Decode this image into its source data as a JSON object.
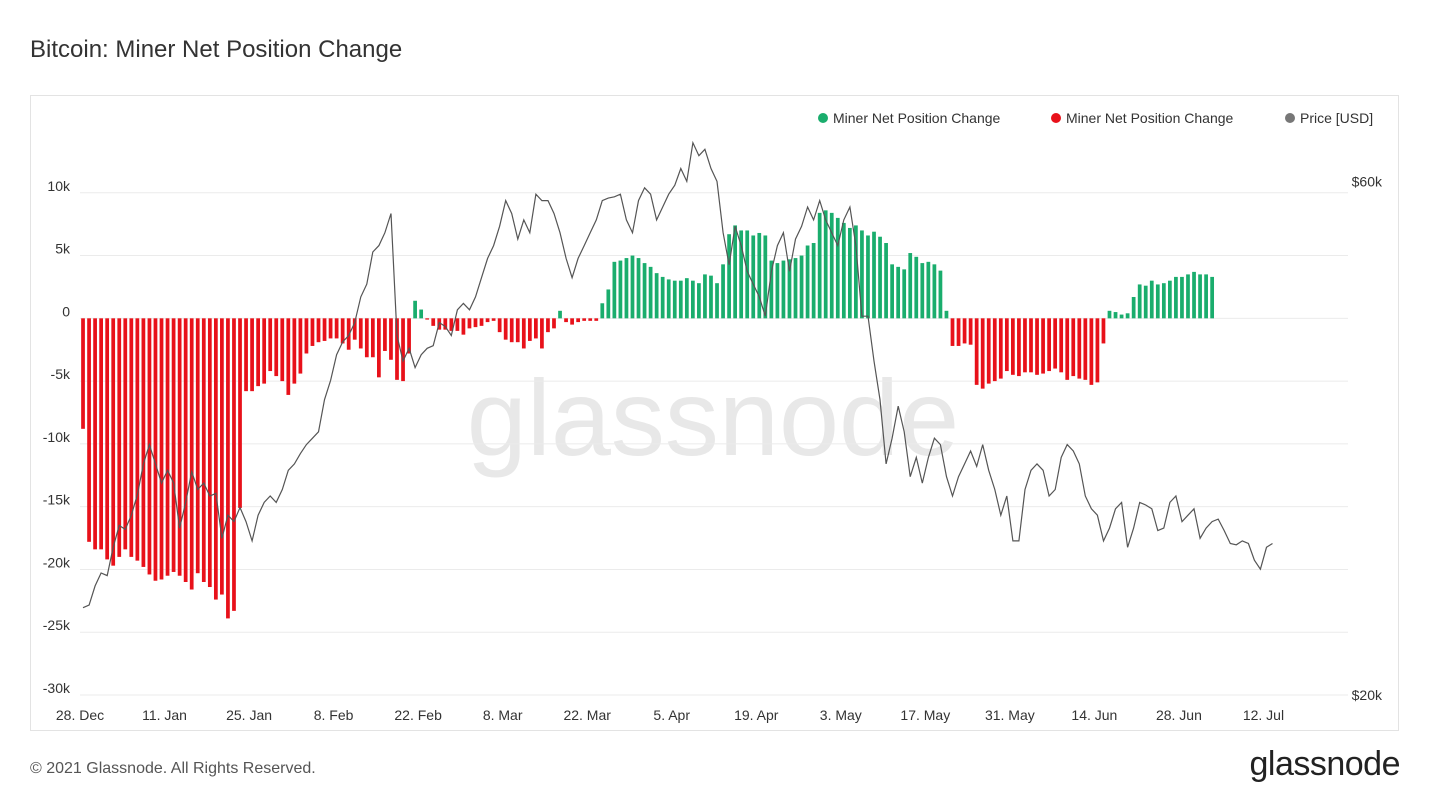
{
  "page": {
    "title": "Bitcoin: Miner Net Position Change",
    "copyright": "© 2021 Glassnode. All Rights Reserved.",
    "brand": "glassnode",
    "watermark": "glassnode"
  },
  "legend": [
    {
      "label": "Miner Net Position Change",
      "color": "#1aad6d"
    },
    {
      "label": "Miner Net Position Change",
      "color": "#e8111a"
    },
    {
      "label": "Price [USD]",
      "color": "#777777"
    }
  ],
  "chart_data": {
    "type": "bar",
    "title": "Bitcoin: Miner Net Position Change",
    "legend_position": "top-right",
    "grid": true,
    "positive_color": "#1aad6d",
    "negative_color": "#e8111a",
    "price_color": "#555555",
    "x_tick_labels": [
      "28. Dec",
      "11. Jan",
      "25. Jan",
      "8. Feb",
      "22. Feb",
      "8. Mar",
      "22. Mar",
      "5. Apr",
      "19. Apr",
      "3. May",
      "17. May",
      "31. May",
      "14. Jun",
      "28. Jun",
      "12. Jul"
    ],
    "y_left_ticks": [
      10000,
      5000,
      0,
      -5000,
      -10000,
      -15000,
      -20000,
      -25000,
      -30000
    ],
    "y_left_tick_labels": [
      "10k",
      "5k",
      "0",
      "-5k",
      "-10k",
      "-15k",
      "-20k",
      "-25k",
      "-30k"
    ],
    "ylim_left": [
      -30000,
      15000
    ],
    "y_right_ticks": [
      60000,
      20000
    ],
    "y_right_tick_labels": [
      "$60k",
      "$20k"
    ],
    "ylim_right": [
      20000,
      64000
    ],
    "x_range_days": [
      0,
      210
    ],
    "series": [
      {
        "name": "Miner Net Position Change",
        "start_day": 0,
        "values": [
          -8800,
          -17800,
          -18400,
          -18400,
          -19200,
          -19700,
          -19000,
          -18400,
          -19000,
          -19300,
          -19800,
          -20400,
          -20900,
          -20800,
          -20500,
          -20200,
          -20500,
          -21000,
          -21600,
          -20300,
          -21000,
          -21400,
          -22400,
          -22000,
          -23900,
          -23300,
          -15100,
          -5800,
          -5800,
          -5400,
          -5200,
          -4200,
          -4600,
          -5000,
          -6100,
          -5200,
          -4400,
          -2800,
          -2200,
          -1900,
          -1800,
          -1600,
          -1600,
          -2000,
          -2500,
          -1700,
          -2400,
          -3100,
          -3100,
          -4700,
          -2600,
          -3300,
          -4900,
          -5000,
          -2800,
          1400,
          700,
          -100,
          -600,
          -900,
          -900,
          -1000,
          -1000,
          -1300,
          -800,
          -700,
          -600,
          -300,
          -200,
          -1100,
          -1700,
          -1900,
          -1900,
          -2400,
          -1800,
          -1600,
          -2400,
          -1100,
          -800,
          600,
          -300,
          -500,
          -300,
          -200,
          -200,
          -200,
          1200,
          2300,
          4500,
          4600,
          4800,
          5000,
          4800,
          4400,
          4100,
          3600,
          3300,
          3100,
          3000,
          3000,
          3200,
          3000,
          2800,
          3500,
          3400,
          2800,
          4300,
          6700,
          7400,
          7000,
          7000,
          6600,
          6800,
          6600,
          4600,
          4400,
          4600,
          4700,
          4800,
          5000,
          5800,
          6000,
          8400,
          8600,
          8400,
          8000,
          7600,
          7200,
          7400,
          7000,
          6600,
          6900,
          6500,
          6000,
          4300,
          4100,
          3900,
          5200,
          4900,
          4400,
          4500,
          4300,
          3800,
          600,
          -2200,
          -2200,
          -2000,
          -2100,
          -5300,
          -5600,
          -5200,
          -5000,
          -4800,
          -4200,
          -4500,
          -4600,
          -4300,
          -4300,
          -4500,
          -4400,
          -4200,
          -4000,
          -4300,
          -4900,
          -4600,
          -4800,
          -4900,
          -5300,
          -5100,
          -2000,
          600,
          500,
          300,
          400,
          1700,
          2700,
          2600,
          3000,
          2700,
          2800,
          3000,
          3300,
          3300,
          3500,
          3700,
          3500,
          3500,
          3300
        ]
      }
    ],
    "price": {
      "name": "Price [USD]",
      "start_day": 0,
      "values": [
        26800,
        27000,
        28500,
        29500,
        29300,
        31500,
        33200,
        32900,
        34000,
        35600,
        38000,
        39500,
        38000,
        36500,
        37500,
        36500,
        33000,
        35000,
        37400,
        36000,
        36500,
        35500,
        35700,
        32200,
        34000,
        33500,
        34600,
        33500,
        32000,
        34000,
        35000,
        35500,
        35000,
        36000,
        37500,
        38000,
        38800,
        39500,
        40000,
        40500,
        43000,
        44500,
        46500,
        47500,
        48000,
        49000,
        51000,
        52000,
        54500,
        55000,
        56000,
        57500,
        48000,
        46000,
        47000,
        45500,
        46500,
        47000,
        47200,
        49000,
        48700,
        48000,
        50000,
        50500,
        50000,
        51000,
        52500,
        54000,
        55000,
        56500,
        58500,
        57500,
        55500,
        57000,
        56000,
        59000,
        58500,
        58500,
        57500,
        56000,
        54000,
        52500,
        54000,
        55000,
        56000,
        57000,
        58500,
        58700,
        58800,
        59000,
        57000,
        56000,
        58500,
        59500,
        59000,
        57000,
        58000,
        59000,
        59700,
        61000,
        60000,
        63000,
        62000,
        62500,
        61000,
        60000,
        56000,
        53500,
        56500,
        55000,
        53000,
        52000,
        51000,
        49500,
        53000,
        55000,
        56000,
        53000,
        55500,
        56500,
        58000,
        57000,
        58500,
        57000,
        56000,
        55000,
        57000,
        58000,
        55000,
        49500,
        49500,
        46000,
        43000,
        38000,
        40000,
        42500,
        40500,
        37000,
        38500,
        36500,
        38500,
        40000,
        39500,
        37000,
        35500,
        37000,
        38000,
        39000,
        37800,
        39500,
        37500,
        36000,
        34000,
        35500,
        32000,
        32000,
        36000,
        37500,
        38000,
        37500,
        35500,
        36000,
        38500,
        39500,
        39000,
        38000,
        35500,
        34500,
        34000,
        32000,
        33000,
        34500,
        35000,
        31500,
        33000,
        35000,
        34800,
        34500,
        32800,
        33000,
        35000,
        35500,
        33500,
        34000,
        34500,
        32200,
        33000,
        33500,
        33700,
        32800,
        31800,
        31700,
        32000,
        31800,
        30500,
        29800,
        31500,
        31800
      ]
    }
  }
}
